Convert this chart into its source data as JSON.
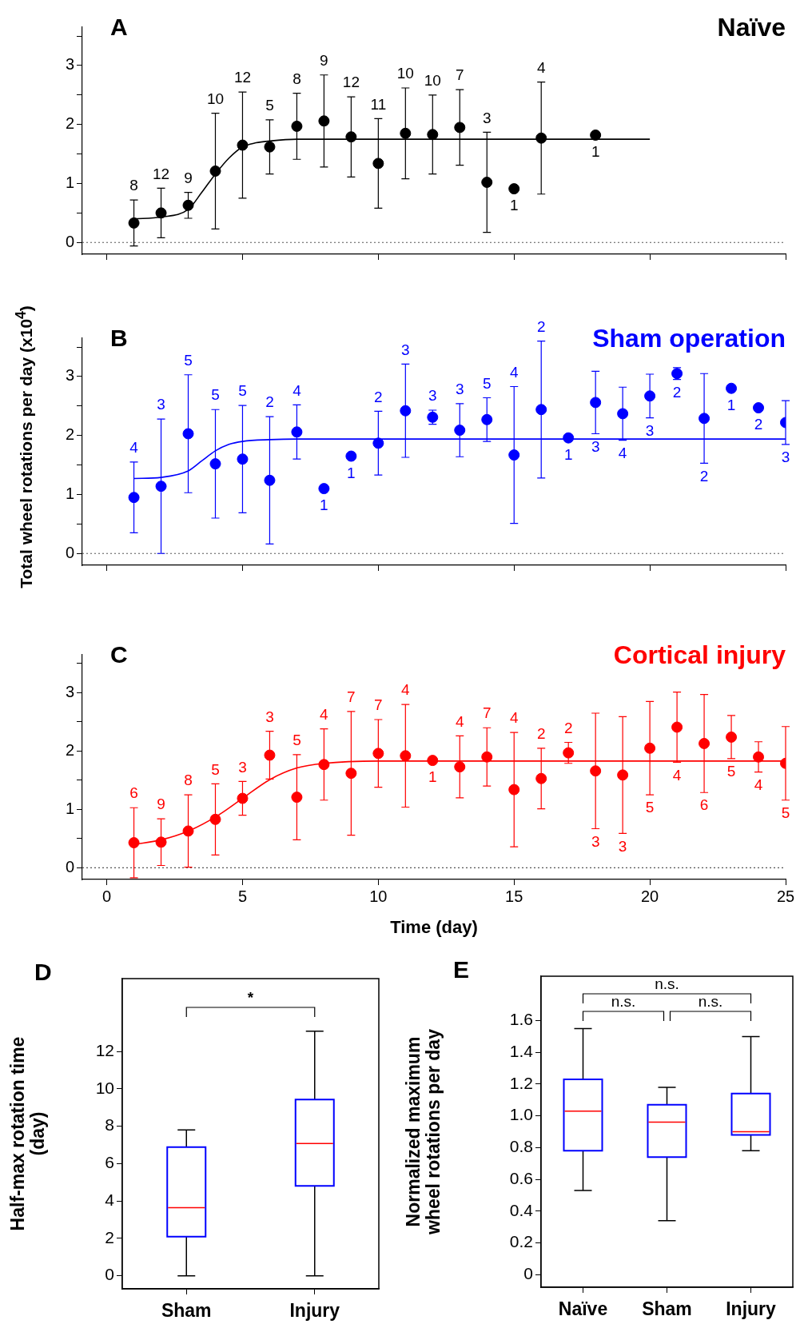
{
  "chart_data": [
    {
      "type": "scatter",
      "title": "Naïve",
      "annotations": [
        "A",
        {
          "text": "8",
          "x": 1,
          "y": 0.72
        },
        {
          "text": "12",
          "x": 2,
          "y": 0.92
        },
        {
          "text": "9",
          "x": 3,
          "y": 0.85
        },
        {
          "text": "10",
          "x": 4,
          "y": 2.19
        },
        {
          "text": "12",
          "x": 5,
          "y": 2.55
        },
        {
          "text": "5",
          "x": 6,
          "y": 2.08
        },
        {
          "text": "8",
          "x": 7,
          "y": 2.53
        },
        {
          "text": "9",
          "x": 8,
          "y": 2.84
        },
        {
          "text": "12",
          "x": 9,
          "y": 2.47
        },
        {
          "text": "11",
          "x": 10,
          "y": 2.1
        },
        {
          "text": "10",
          "x": 11,
          "y": 2.62
        },
        {
          "text": "10",
          "x": 12,
          "y": 2.5
        },
        {
          "text": "7",
          "x": 13,
          "y": 2.59
        },
        {
          "text": "3",
          "x": 14,
          "y": 1.87
        },
        {
          "text": "1",
          "x": 15,
          "y": 0.91
        },
        {
          "text": "4",
          "x": 16,
          "y": 2.72
        },
        {
          "text": "1",
          "x": 18,
          "y": 1.82
        }
      ],
      "x": [
        1,
        2,
        3,
        4,
        5,
        6,
        7,
        8,
        9,
        10,
        11,
        12,
        13,
        14,
        15,
        16,
        18
      ],
      "series": [
        {
          "type": "scatter",
          "color": "#000000",
          "marker": "circle",
          "values": [
            0.33,
            0.5,
            0.63,
            1.21,
            1.65,
            1.62,
            1.97,
            2.06,
            1.79,
            1.34,
            1.85,
            1.83,
            1.95,
            1.02,
            0.91,
            1.77,
            1.82
          ],
          "errors": [
            0.39,
            0.42,
            0.22,
            0.98,
            0.9,
            0.46,
            0.56,
            0.78,
            0.68,
            0.76,
            0.77,
            0.67,
            0.64,
            0.85,
            null,
            0.95,
            null
          ]
        },
        {
          "type": "line",
          "color": "#000000",
          "marker": "none",
          "x": [
            1,
            2,
            3,
            3.5,
            4,
            4.5,
            5,
            5.5,
            6,
            7,
            8,
            20
          ],
          "values": [
            0.4,
            0.43,
            0.56,
            0.85,
            1.16,
            1.43,
            1.62,
            1.69,
            1.72,
            1.75,
            1.75,
            1.75
          ]
        }
      ],
      "xlim": [
        -0.9,
        25
      ],
      "xticks": [
        0,
        5,
        10,
        15,
        20,
        25
      ],
      "ylim": [
        -0.2,
        3.65
      ],
      "yticks": [
        0,
        {
          "value": 0.5,
          "label": null
        },
        1,
        {
          "value": 1.5,
          "label": null
        },
        2,
        {
          "value": 2.5,
          "label": null
        },
        3,
        {
          "value": 3.5,
          "label": null
        }
      ],
      "ref_lines": [
        {
          "axis": "y",
          "value": 0,
          "line_style": "dotted",
          "color": "#555555"
        }
      ],
      "tick_labels": "y"
    },
    {
      "type": "scatter",
      "title": "Sham operation",
      "ylabel": "Total wheel rotations per day (x10$^{4}$)",
      "annotations": [
        "B",
        {
          "text": "4",
          "x": 1,
          "y": 1.55
        },
        {
          "text": "3",
          "x": 2,
          "y": 2.28
        },
        {
          "text": "5",
          "x": 3,
          "y": 3.03
        },
        {
          "text": "5",
          "x": 4,
          "y": 2.44
        },
        {
          "text": "5",
          "x": 5,
          "y": 2.51
        },
        {
          "text": "2",
          "x": 6,
          "y": 2.32
        },
        {
          "text": "4",
          "x": 7,
          "y": 2.52
        },
        {
          "text": "1",
          "x": 8,
          "y": 1.1
        },
        {
          "text": "1",
          "x": 9,
          "y": 1.65
        },
        {
          "text": "2",
          "x": 10,
          "y": 2.41
        },
        {
          "text": "3",
          "x": 11,
          "y": 3.21
        },
        {
          "text": "3",
          "x": 12,
          "y": 2.43
        },
        {
          "text": "3",
          "x": 13,
          "y": 2.54
        },
        {
          "text": "5",
          "x": 14,
          "y": 2.64
        },
        {
          "text": "4",
          "x": 15,
          "y": 2.83
        },
        {
          "text": "2",
          "x": 16,
          "y": 3.6
        },
        {
          "text": "1",
          "x": 17,
          "y": 1.96
        },
        {
          "text": "3",
          "x": 18,
          "y": 2.03
        },
        {
          "text": "4",
          "x": 19,
          "y": 1.92
        },
        {
          "text": "3",
          "x": 20,
          "y": 2.3
        },
        {
          "text": "2",
          "x": 21,
          "y": 2.95
        },
        {
          "text": "2",
          "x": 22,
          "y": 1.53
        },
        {
          "text": "1",
          "x": 23,
          "y": 2.8
        },
        {
          "text": "2",
          "x": 24,
          "y": 2.47
        },
        {
          "text": "3",
          "x": 25,
          "y": 1.85
        }
      ],
      "x": [
        1,
        2,
        3,
        4,
        5,
        6,
        7,
        8,
        9,
        10,
        11,
        12,
        13,
        14,
        15,
        16,
        17,
        18,
        19,
        20,
        21,
        22,
        23,
        24,
        25
      ],
      "series": [
        {
          "type": "scatter",
          "color": "#0000ff",
          "marker": "circle",
          "values": [
            0.95,
            1.14,
            2.03,
            1.52,
            1.6,
            1.24,
            2.06,
            1.1,
            1.65,
            1.87,
            2.42,
            2.31,
            2.09,
            2.27,
            1.67,
            2.44,
            1.96,
            2.56,
            2.37,
            2.67,
            3.05,
            2.29,
            2.8,
            2.47,
            2.22
          ],
          "errors": [
            0.6,
            1.14,
            1.0,
            0.92,
            0.91,
            1.08,
            0.46,
            null,
            null,
            0.54,
            0.79,
            0.12,
            0.45,
            0.37,
            1.16,
            1.16,
            null,
            0.53,
            0.45,
            0.37,
            0.1,
            0.76,
            null,
            null,
            0.37
          ]
        },
        {
          "type": "line",
          "color": "#0000ff",
          "marker": "none",
          "x": [
            1,
            2,
            3,
            3.5,
            4,
            4.5,
            5,
            6,
            7,
            25
          ],
          "values": [
            1.27,
            1.29,
            1.4,
            1.57,
            1.74,
            1.85,
            1.9,
            1.93,
            1.94,
            1.94
          ]
        }
      ],
      "xlim": [
        -0.9,
        25
      ],
      "xticks": [
        0,
        5,
        10,
        15,
        20,
        25
      ],
      "ylim": [
        -0.2,
        3.65
      ],
      "yticks": [
        0,
        {
          "value": 0.5,
          "label": null
        },
        1,
        {
          "value": 1.5,
          "label": null
        },
        2,
        {
          "value": 2.5,
          "label": null
        },
        3,
        {
          "value": 3.5,
          "label": null
        }
      ],
      "ref_lines": [
        {
          "axis": "y",
          "value": 0,
          "line_style": "dotted",
          "color": "#555555"
        }
      ],
      "tick_labels": "y"
    },
    {
      "type": "scatter",
      "title": "Cortical injury",
      "xlabel": "Time (day)",
      "annotations": [
        "C",
        {
          "text": "6",
          "x": 1,
          "y": 1.03
        },
        {
          "text": "9",
          "x": 2,
          "y": 0.84
        },
        {
          "text": "8",
          "x": 3,
          "y": 1.25
        },
        {
          "text": "5",
          "x": 4,
          "y": 1.44
        },
        {
          "text": "3",
          "x": 5,
          "y": 1.48
        },
        {
          "text": "3",
          "x": 6,
          "y": 2.34
        },
        {
          "text": "5",
          "x": 7,
          "y": 1.94
        },
        {
          "text": "4",
          "x": 8,
          "y": 2.38
        },
        {
          "text": "7",
          "x": 9,
          "y": 2.68
        },
        {
          "text": "7",
          "x": 10,
          "y": 2.54
        },
        {
          "text": "4",
          "x": 11,
          "y": 2.8
        },
        {
          "text": "1",
          "x": 12,
          "y": 1.84
        },
        {
          "text": "4",
          "x": 13,
          "y": 2.26
        },
        {
          "text": "7",
          "x": 14,
          "y": 2.4
        },
        {
          "text": "4",
          "x": 15,
          "y": 2.32
        },
        {
          "text": "2",
          "x": 16,
          "y": 2.05
        },
        {
          "text": "2",
          "x": 17,
          "y": 2.15
        },
        {
          "text": "3",
          "x": 18,
          "y": 0.67
        },
        {
          "text": "3",
          "x": 19,
          "y": 0.59
        },
        {
          "text": "5",
          "x": 20,
          "y": 1.25
        },
        {
          "text": "4",
          "x": 21,
          "y": 1.81
        },
        {
          "text": "6",
          "x": 22,
          "y": 1.29
        },
        {
          "text": "5",
          "x": 23,
          "y": 1.87
        },
        {
          "text": "4",
          "x": 24,
          "y": 1.64
        },
        {
          "text": "5",
          "x": 25,
          "y": 1.16
        }
      ],
      "x": [
        1,
        2,
        3,
        4,
        5,
        6,
        7,
        8,
        9,
        10,
        11,
        12,
        13,
        14,
        15,
        16,
        17,
        18,
        19,
        20,
        21,
        22,
        23,
        24,
        25
      ],
      "series": [
        {
          "type": "scatter",
          "color": "#ff0000",
          "marker": "circle",
          "values": [
            0.43,
            0.44,
            0.63,
            0.83,
            1.19,
            1.93,
            1.21,
            1.77,
            1.62,
            1.96,
            1.92,
            1.84,
            1.73,
            1.9,
            1.34,
            1.53,
            1.97,
            1.66,
            1.59,
            2.05,
            2.41,
            2.13,
            2.24,
            1.9,
            1.79
          ],
          "errors": [
            0.6,
            0.4,
            0.62,
            0.61,
            0.29,
            0.41,
            0.73,
            0.61,
            1.06,
            0.58,
            0.88,
            null,
            0.53,
            0.5,
            0.98,
            0.52,
            0.18,
            0.99,
            1.0,
            0.8,
            0.6,
            0.84,
            0.37,
            0.26,
            0.63
          ]
        },
        {
          "type": "line",
          "color": "#ff0000",
          "marker": "none",
          "x": [
            1,
            2,
            3,
            4,
            5,
            6,
            7,
            8,
            10,
            25
          ],
          "values": [
            0.4,
            0.48,
            0.63,
            0.87,
            1.19,
            1.51,
            1.71,
            1.79,
            1.83,
            1.83
          ]
        }
      ],
      "xlim": [
        -0.9,
        25
      ],
      "xticks": [
        0,
        5,
        10,
        15,
        20,
        25
      ],
      "ylim": [
        -0.2,
        3.65
      ],
      "yticks": [
        0,
        {
          "value": 0.5,
          "label": null
        },
        1,
        {
          "value": 1.5,
          "label": null
        },
        2,
        {
          "value": 2.5,
          "label": null
        },
        3,
        {
          "value": 3.5,
          "label": null
        }
      ],
      "ref_lines": [
        {
          "axis": "y",
          "value": 0,
          "line_style": "dotted",
          "color": "#555555"
        }
      ]
    },
    {
      "type": "box",
      "ylabel": "Half-max rotation time\n(day)",
      "annotations": [
        "D",
        "*"
      ],
      "categories": [
        "Sham",
        "Injury"
      ],
      "series": [
        {
          "color": "#0000ff",
          "boxes": [
            {
              "low": 0,
              "q1": 2.09,
              "median": 3.64,
              "q3": 6.88,
              "high": 7.8
            },
            {
              "low": 0,
              "q1": 4.81,
              "median": 7.08,
              "q3": 9.43,
              "high": 13.09
            }
          ]
        }
      ],
      "ylim": [
        -0.7,
        15.9
      ],
      "yticks": [
        0,
        2,
        4,
        6,
        8,
        10,
        12
      ]
    },
    {
      "type": "box",
      "ylabel": "Normalized maximum\nwheel rotations per day",
      "annotations": [
        "E",
        "n.s.",
        "n.s.",
        "n.s."
      ],
      "categories": [
        "Naïve",
        "Sham",
        "Injury"
      ],
      "series": [
        {
          "color": "#0000ff",
          "boxes": [
            {
              "low": 0.53,
              "q1": 0.78,
              "median": 1.03,
              "q3": 1.23,
              "high": 1.55
            },
            {
              "low": 0.34,
              "q1": 0.74,
              "median": 0.96,
              "q3": 1.07,
              "high": 1.18
            },
            {
              "low": 0.78,
              "q1": 0.88,
              "median": 0.9,
              "q3": 1.14,
              "high": 1.5
            }
          ]
        }
      ],
      "ylim": [
        -0.08,
        1.88
      ],
      "yticks": [
        0,
        0.2,
        0.4,
        0.6,
        0.8,
        {
          "value": 1,
          "label": "1.0"
        },
        1.2,
        1.4,
        1.6
      ]
    }
  ]
}
